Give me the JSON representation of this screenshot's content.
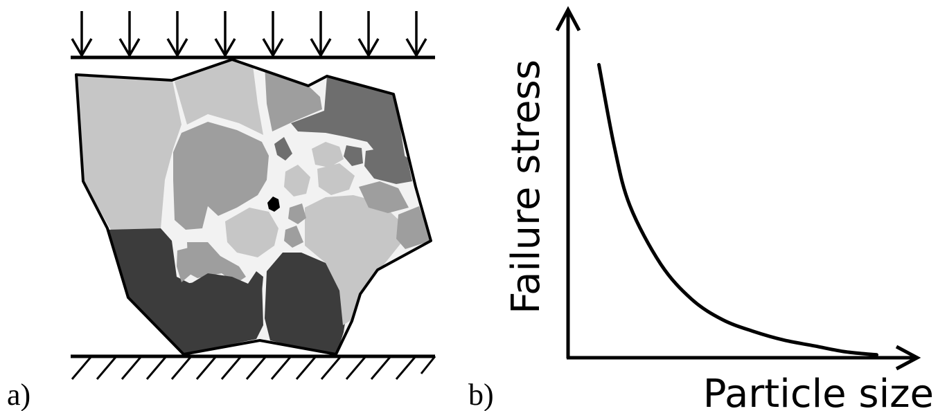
{
  "panels": {
    "a": {
      "label": "a)"
    },
    "b": {
      "label": "b)"
    }
  },
  "chart_data": {
    "type": "line",
    "xlabel": "Particle size",
    "ylabel": "Failure stress",
    "series": [
      {
        "shape": "decreasing hyperbolic curve",
        "x": [
          0.1,
          0.15,
          0.2,
          0.3,
          0.4,
          0.5,
          0.6,
          0.7,
          0.8,
          0.9,
          1.0
        ],
        "y": [
          1.0,
          0.72,
          0.52,
          0.32,
          0.2,
          0.13,
          0.09,
          0.06,
          0.04,
          0.02,
          0.01
        ]
      }
    ],
    "xlim": [
      0,
      1.1
    ],
    "ylim": [
      0,
      1.15
    ],
    "ticks": "none",
    "grid": false,
    "colors": {
      "line": "#000000"
    }
  },
  "colors": {
    "fragment_light": "#c6c6c6",
    "fragment_mid": "#9e9e9e",
    "fragment_dark": "#6e6e6e",
    "fragment_darkest": "#3c3c3c",
    "crack": "#f2f2f2",
    "outline": "#000000"
  }
}
